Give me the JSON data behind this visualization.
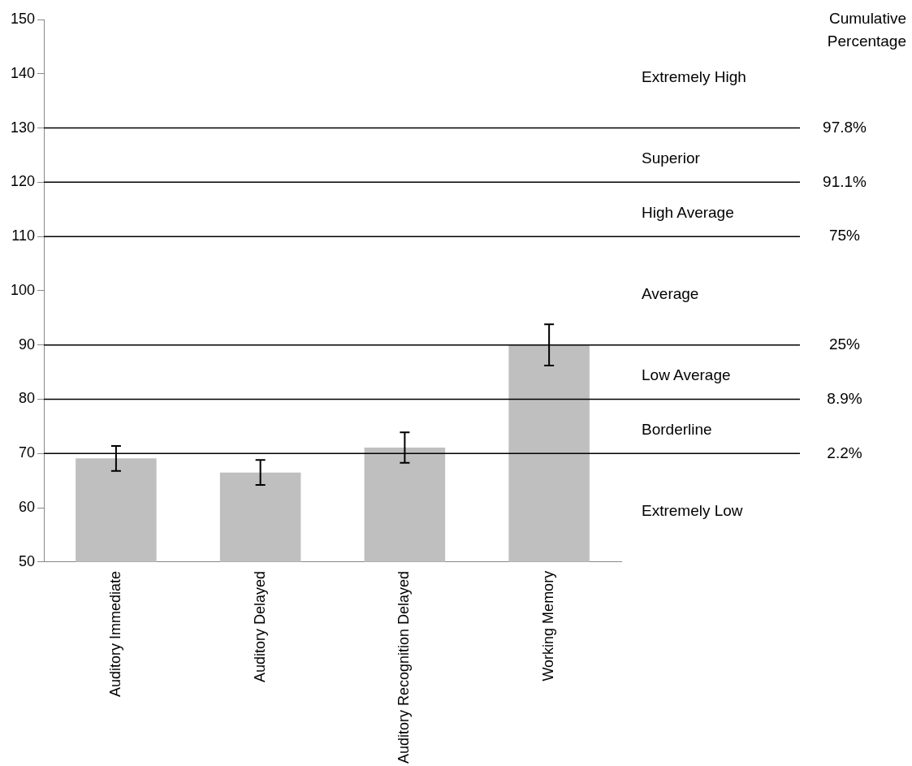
{
  "chart_data": {
    "type": "bar",
    "categories": [
      "Auditory Immediate",
      "Auditory Delayed",
      "Auditory Recognition Delayed",
      "Working Memory"
    ],
    "values": [
      69.1,
      66.5,
      71.1,
      90.0
    ],
    "errors": [
      2.3,
      2.3,
      2.8,
      3.8
    ],
    "color": "#bfbfbf",
    "ylim": [
      50,
      150
    ],
    "yticks": [
      50,
      60,
      70,
      80,
      90,
      100,
      110,
      120,
      130,
      140,
      150
    ],
    "grid": false,
    "legend": false,
    "ref_lines": [
      {
        "axis": "y",
        "value": 130
      },
      {
        "axis": "y",
        "value": 120
      },
      {
        "axis": "y",
        "value": 110
      },
      {
        "axis": "y",
        "value": 90
      },
      {
        "axis": "y",
        "value": 80
      },
      {
        "axis": "y",
        "value": 70
      }
    ],
    "annotations": [
      "Cumulative Percentage",
      "Extremely High",
      "Superior",
      "High Average",
      "Average",
      "Low Average",
      "Borderline",
      "Extremely Low",
      "97.8%",
      "91.1%",
      "75%",
      "25%",
      "8.9%",
      "2.2%"
    ]
  }
}
